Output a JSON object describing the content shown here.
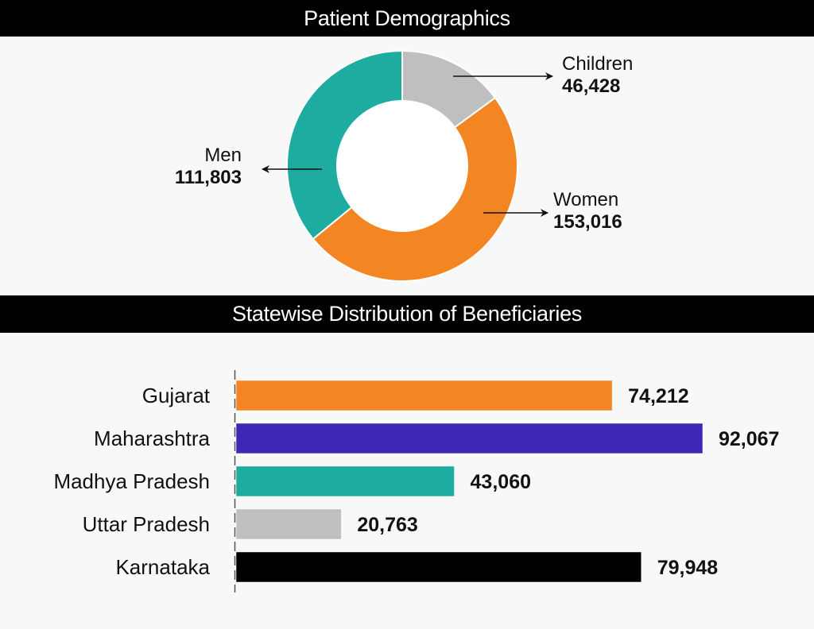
{
  "chart_data": [
    {
      "type": "pie",
      "variant": "donut",
      "title": "Patient Demographics",
      "slices": [
        {
          "label": "Children",
          "value": 46428,
          "display": "46,428",
          "color": "#bfbfbf"
        },
        {
          "label": "Women",
          "value": 153016,
          "display": "153,016",
          "color": "#f38623"
        },
        {
          "label": "Men",
          "value": 111803,
          "display": "111,803",
          "color": "#1eaca1"
        }
      ],
      "start_angle_deg": 0,
      "direction": "clockwise"
    },
    {
      "type": "bar",
      "orientation": "horizontal",
      "title": "Statewise Distribution of Beneficiaries",
      "categories": [
        "Gujarat",
        "Maharashtra",
        "Madhya Pradesh",
        "Uttar Pradesh",
        "Karnataka"
      ],
      "values": [
        74212,
        92067,
        43060,
        20763,
        79948
      ],
      "value_labels": [
        "74,212",
        "92,067",
        "43,060",
        "20,763",
        "79,948"
      ],
      "colors": [
        "#f38623",
        "#3f27b5",
        "#1eaca1",
        "#bfbfbf",
        "#000000"
      ],
      "xlabel": "",
      "ylabel": "",
      "grid": false
    }
  ]
}
